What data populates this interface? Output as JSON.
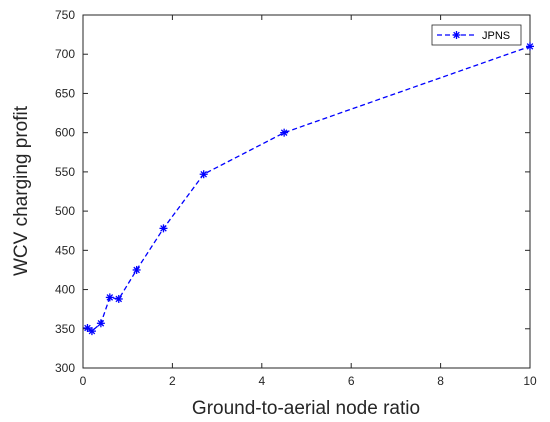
{
  "chart_data": {
    "type": "line",
    "xlabel": "Ground-to-aerial node ratio",
    "ylabel": "WCV charging profit",
    "xlim": [
      0,
      10
    ],
    "ylim": [
      300,
      750
    ],
    "xticks": [
      0,
      2,
      4,
      6,
      8,
      10
    ],
    "yticks": [
      300,
      350,
      400,
      450,
      500,
      550,
      600,
      650,
      700,
      750
    ],
    "grid": false,
    "legend_position": "top-right",
    "series": [
      {
        "name": "JPNS",
        "color": "#0000ff",
        "line_style": "dashed",
        "marker": "asterisk",
        "x": [
          0.1,
          0.2,
          0.4,
          0.6,
          0.8,
          1.2,
          1.8,
          2.7,
          4.5,
          10
        ],
        "y": [
          351,
          347,
          357,
          390,
          388,
          425,
          478,
          547,
          600,
          710
        ]
      }
    ]
  }
}
